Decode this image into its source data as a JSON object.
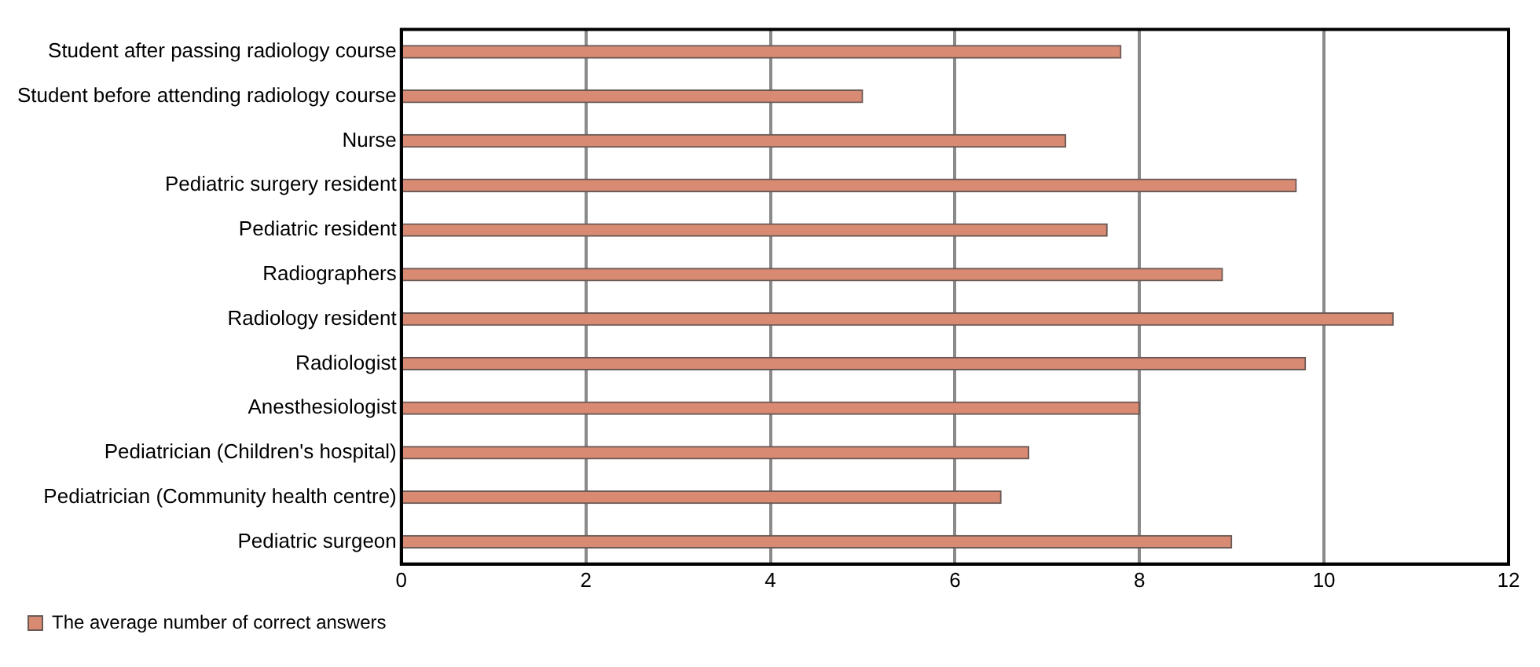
{
  "chart_data": {
    "type": "bar",
    "orientation": "horizontal",
    "categories": [
      "Student after passing radiology course",
      "Student before attending radiology course",
      "Nurse",
      "Pediatric surgery resident",
      "Pediatric resident",
      "Radiographers",
      "Radiology resident",
      "Radiologist",
      "Anesthesiologist",
      "Pediatrician (Children's hospital)",
      "Pediatrician (Community health centre)",
      "Pediatric surgeon"
    ],
    "series": [
      {
        "name": "The average number of correct answers",
        "color": "#d98a72",
        "values": [
          7.8,
          5.0,
          7.2,
          9.7,
          7.65,
          8.9,
          10.75,
          9.8,
          8.0,
          6.8,
          6.5,
          9.0
        ]
      }
    ],
    "xlim": [
      0,
      12
    ],
    "xticks": [
      0,
      2,
      4,
      6,
      8,
      10,
      12
    ],
    "grid": "x",
    "legend": "bottom left"
  }
}
